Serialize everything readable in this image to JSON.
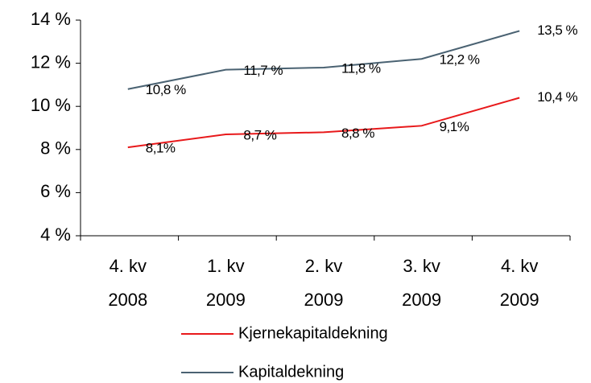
{
  "chart_data": {
    "type": "line",
    "categories": [
      [
        "4. kv",
        "2008"
      ],
      [
        "1. kv",
        "2009"
      ],
      [
        "2. kv",
        "2009"
      ],
      [
        "3. kv",
        "2009"
      ],
      [
        "4. kv",
        "2009"
      ]
    ],
    "series": [
      {
        "name": "Kjernekapitaldekning",
        "color": "#e8191b",
        "values": [
          8.1,
          8.7,
          8.8,
          9.1,
          10.4
        ],
        "value_labels": [
          "8,1%",
          "8,7 %",
          "8,8 %",
          "9,1%",
          "10,4 %"
        ]
      },
      {
        "name": "Kapitaldekning",
        "color": "#4a6272",
        "values": [
          10.8,
          11.7,
          11.8,
          12.2,
          13.5
        ],
        "value_labels": [
          "10,8 %",
          "11,7 %",
          "11,8 %",
          "12,2 %",
          "13,5 %"
        ]
      }
    ],
    "ylim": [
      4,
      14
    ],
    "yticks": [
      {
        "value": 4,
        "label": "4 %"
      },
      {
        "value": 6,
        "label": "6 %"
      },
      {
        "value": 8,
        "label": "8 %"
      },
      {
        "value": 10,
        "label": "10 %"
      },
      {
        "value": 12,
        "label": "12 %"
      },
      {
        "value": 14,
        "label": "14 %"
      }
    ]
  }
}
